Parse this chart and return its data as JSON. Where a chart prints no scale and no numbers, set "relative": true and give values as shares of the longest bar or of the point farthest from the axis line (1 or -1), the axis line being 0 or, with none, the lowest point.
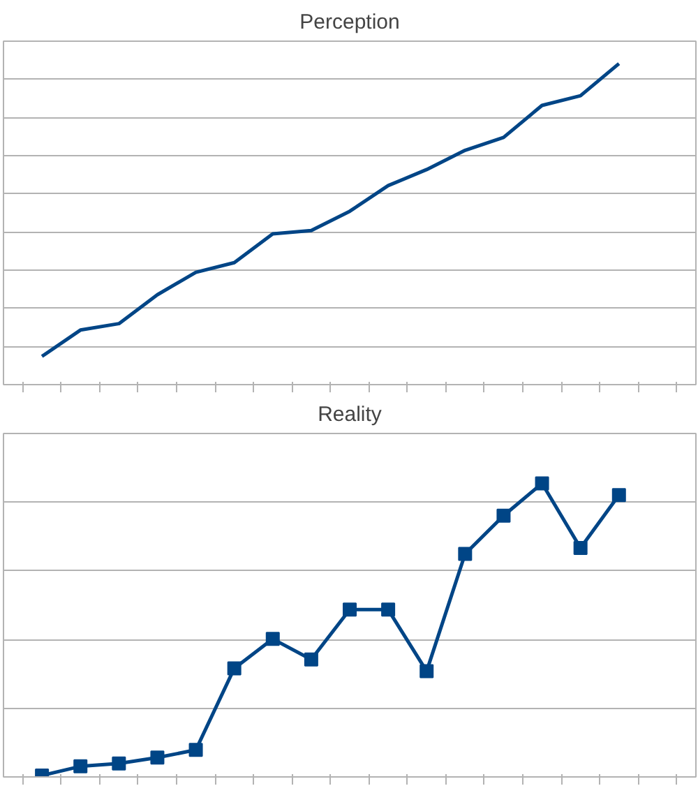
{
  "chart_data": [
    {
      "type": "line",
      "title": "Perception",
      "relative": true,
      "grid": "y",
      "tick_labels": false,
      "marker": "none",
      "line_style": "solid",
      "categories": [
        null,
        null,
        null,
        null,
        null,
        null,
        null,
        null,
        null,
        null,
        null,
        null,
        null,
        null,
        null,
        null
      ],
      "series": [
        {
          "color": "#004586",
          "values": [
            0.088,
            0.17,
            0.19,
            0.28,
            0.35,
            0.38,
            0.47,
            0.48,
            0.54,
            0.62,
            0.67,
            0.73,
            0.77,
            0.87,
            0.9,
            1
          ]
        }
      ]
    },
    {
      "type": "line",
      "title": "Reality",
      "relative": true,
      "grid": "y",
      "tick_labels": false,
      "marker": "square",
      "line_style": "solid",
      "categories": [
        null,
        null,
        null,
        null,
        null,
        null,
        null,
        null,
        null,
        null,
        null,
        null,
        null,
        null,
        null,
        null
      ],
      "series": [
        {
          "color": "#004586",
          "values": [
            0.005,
            0.036,
            0.046,
            0.066,
            0.092,
            0.37,
            0.47,
            0.4,
            0.57,
            0.57,
            0.36,
            0.76,
            0.89,
            1,
            0.78,
            0.96
          ]
        }
      ]
    }
  ]
}
